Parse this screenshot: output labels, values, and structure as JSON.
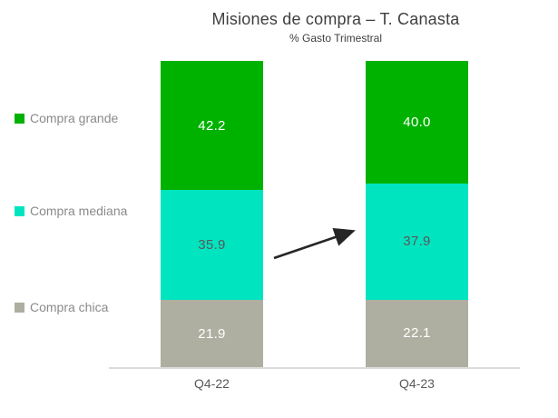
{
  "header": {
    "title": "Misiones de compra – T. Canasta",
    "subtitle": "% Gasto Trimestral"
  },
  "legend": {
    "position": "left",
    "items": [
      {
        "label": "Compra grande",
        "color": "#00b200"
      },
      {
        "label": "Compra mediana",
        "color": "#00e5c0"
      },
      {
        "label": "Compra chica",
        "color": "#afafa1"
      }
    ]
  },
  "chart_data": {
    "type": "bar",
    "stacked": true,
    "title": "Misiones de compra – T. Canasta",
    "subtitle": "% Gasto Trimestral",
    "categories": [
      "Q4-22",
      "Q4-23"
    ],
    "series": [
      {
        "name": "Compra grande",
        "color": "#00b200",
        "values": [
          42.2,
          40.0
        ],
        "labels": [
          "42.2",
          "40.0"
        ],
        "label_color": "#ffffff"
      },
      {
        "name": "Compra mediana",
        "color": "#00e5c0",
        "values": [
          35.9,
          37.9
        ],
        "labels": [
          "35.9",
          "37.9"
        ],
        "label_color": "#595959"
      },
      {
        "name": "Compra chica",
        "color": "#afafa1",
        "values": [
          21.9,
          22.1
        ],
        "labels": [
          "21.9",
          "22.1"
        ],
        "label_color": "#ffffff"
      }
    ],
    "ylim": [
      0,
      100
    ],
    "unit": "%",
    "grid": false,
    "legend_position": "left",
    "annotations": [
      {
        "type": "arrow",
        "color": "#262626",
        "from_category": "Q4-22",
        "to_category": "Q4-23",
        "meaning": "upward trend of Compra mediana between bars"
      }
    ],
    "axis_line_color": "#dcdcdc",
    "x_label_color": "#595959"
  }
}
